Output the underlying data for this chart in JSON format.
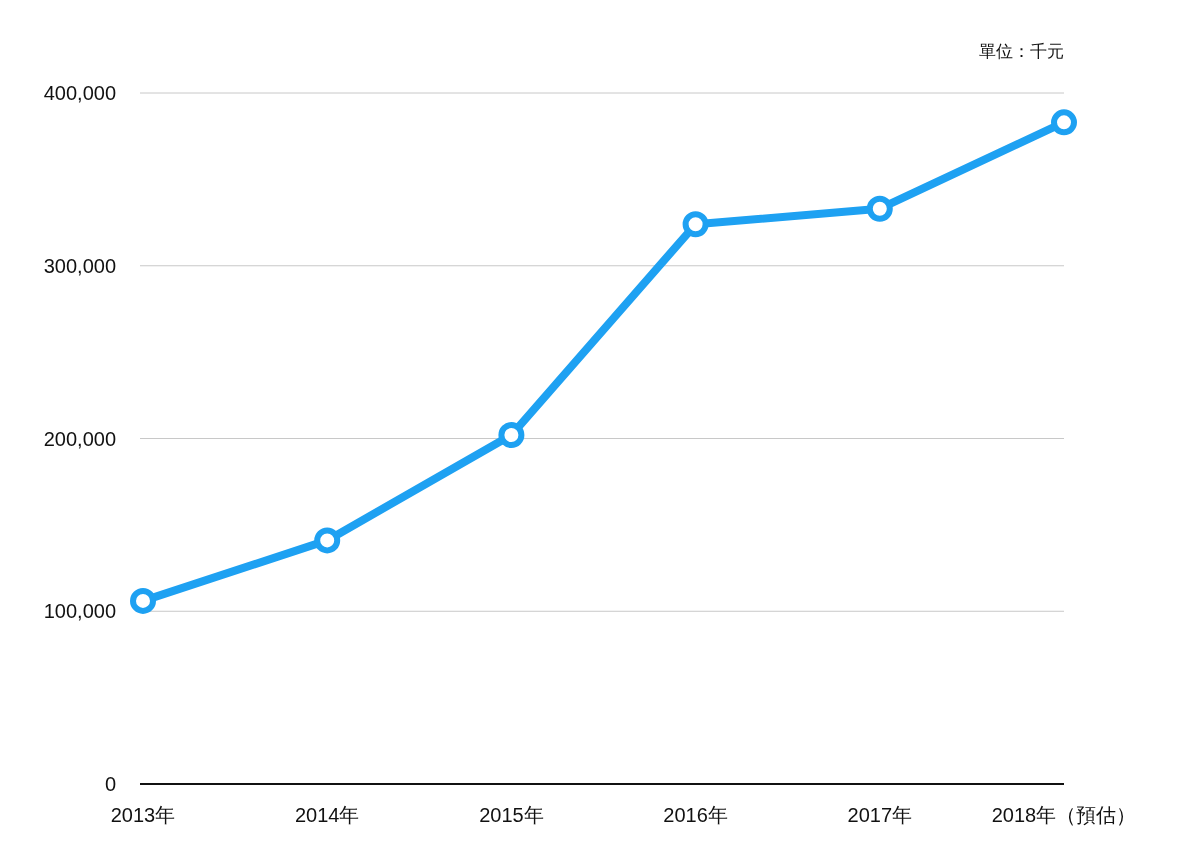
{
  "chart_data": {
    "type": "line",
    "categories": [
      "2013年",
      "2014年",
      "2015年",
      "2016年",
      "2017年",
      "2018年（預估）"
    ],
    "series": [
      {
        "color": "#1ea1f2",
        "values": [
          106000,
          141000,
          202000,
          324000,
          333000,
          383000
        ]
      }
    ],
    "ylim": [
      0,
      400000
    ],
    "yticks": [
      0,
      {
        "value": 100000,
        "label": "100,000"
      },
      {
        "value": 200000,
        "label": "200,000"
      },
      {
        "value": 300000,
        "label": "300,000"
      },
      {
        "value": 400000,
        "label": "400,000"
      }
    ],
    "grid": "y",
    "marker": "circle",
    "line_style": "solid",
    "annotations": [
      "單位：千元"
    ]
  }
}
